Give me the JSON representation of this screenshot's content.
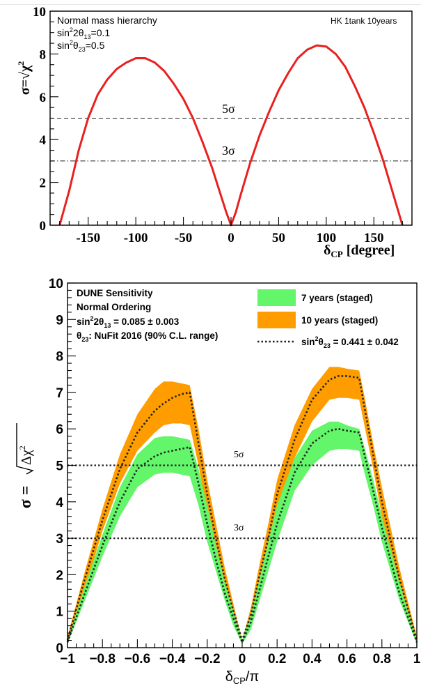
{
  "chart_data": [
    {
      "type": "line",
      "xlabel": "δCP [degree]",
      "ylabel": "σ=√χ²",
      "xlim": [
        -190,
        190
      ],
      "ylim": [
        0,
        10
      ],
      "xticks": [
        -150,
        -100,
        -50,
        0,
        50,
        100,
        150
      ],
      "yticks": [
        0,
        2,
        4,
        6,
        8,
        10
      ],
      "annotations": [
        "Normal mass hierarchy",
        "sin²2θ13=0.1",
        "sin²θ23=0.5"
      ],
      "corner_label": "HK 1tank 10years",
      "grid": false,
      "thresholds": [
        {
          "label": "5σ",
          "value": 5,
          "style": "dashed"
        },
        {
          "label": "3σ",
          "value": 3,
          "style": "dashdot"
        }
      ],
      "series": [
        {
          "color": "#e8201f",
          "x": [
            -180,
            -170,
            -160,
            -150,
            -140,
            -130,
            -120,
            -110,
            -100,
            -90,
            -80,
            -70,
            -60,
            -50,
            -40,
            -30,
            -20,
            -10,
            -5,
            0,
            5,
            10,
            20,
            30,
            40,
            50,
            60,
            70,
            80,
            90,
            100,
            110,
            120,
            130,
            140,
            150,
            160,
            170,
            180
          ],
          "y": [
            0.0,
            1.6,
            3.5,
            5.0,
            6.1,
            6.8,
            7.3,
            7.6,
            7.8,
            7.8,
            7.6,
            7.2,
            6.6,
            5.9,
            5.0,
            3.9,
            2.7,
            1.3,
            0.6,
            0.0,
            0.6,
            1.4,
            2.9,
            4.2,
            5.3,
            6.3,
            7.1,
            7.8,
            8.2,
            8.4,
            8.35,
            8.0,
            7.4,
            6.5,
            5.5,
            4.3,
            3.0,
            1.5,
            0.0
          ]
        }
      ]
    },
    {
      "type": "area",
      "xlabel": "δCP/π",
      "ylabel": "σ = √Δχ²",
      "xlim": [
        -1,
        1
      ],
      "ylim": [
        0,
        10
      ],
      "xticks": [
        -1,
        -0.8,
        -0.6,
        -0.4,
        -0.2,
        0,
        0.2,
        0.4,
        0.6,
        0.8,
        1
      ],
      "xtick_labels": [
        "−1",
        "−0.8",
        "−0.6",
        "−0.4",
        "−0.2",
        "0",
        "0.2",
        "0.4",
        "0.6",
        "0.8",
        "1"
      ],
      "yticks": [
        0,
        1,
        2,
        3,
        4,
        5,
        6,
        7,
        8,
        9,
        10
      ],
      "annotations": [
        "DUNE Sensitivity",
        "Normal Ordering",
        "sin²2θ13 = 0.085 ± 0.003",
        "θ23: NuFit 2016 (90% C.L. range)"
      ],
      "legend": [
        "7 years (staged)",
        "10 years (staged)",
        "sin²θ23 = 0.441 ± 0.042"
      ],
      "legend_placement": "top-right",
      "grid": false,
      "thresholds": [
        {
          "label": "5σ",
          "value": 5,
          "style": "dotted"
        },
        {
          "label": "3σ",
          "value": 3,
          "style": "dotted"
        }
      ],
      "series": [
        {
          "name": "10 years (staged)",
          "kind": "band",
          "color": "#ff9d00",
          "x": [
            -1,
            -0.9,
            -0.8,
            -0.7,
            -0.6,
            -0.5,
            -0.45,
            -0.4,
            -0.35,
            -0.3,
            -0.25,
            -0.2,
            -0.15,
            -0.1,
            -0.05,
            0,
            0.05,
            0.1,
            0.15,
            0.2,
            0.3,
            0.4,
            0.5,
            0.55,
            0.6,
            0.67,
            0.7,
            0.75,
            0.8,
            0.9,
            1
          ],
          "upper": [
            0.3,
            2.1,
            3.8,
            5.3,
            6.4,
            7.1,
            7.3,
            7.3,
            7.25,
            7.2,
            6.0,
            4.6,
            3.4,
            2.2,
            1.2,
            0.2,
            1.1,
            2.3,
            3.4,
            4.6,
            6.1,
            7.1,
            7.7,
            7.7,
            7.65,
            7.6,
            6.9,
            5.6,
            4.4,
            2.2,
            0.3
          ],
          "lower": [
            0.1,
            1.6,
            3.2,
            4.5,
            5.4,
            5.9,
            6.1,
            6.15,
            6.15,
            6.1,
            5.0,
            3.7,
            2.6,
            1.6,
            0.8,
            0.1,
            0.6,
            1.6,
            2.6,
            3.7,
            5.2,
            6.2,
            6.8,
            6.85,
            6.85,
            6.8,
            6.1,
            4.9,
            3.6,
            1.7,
            0.1
          ]
        },
        {
          "name": "7 years (staged)",
          "kind": "band",
          "color": "#63f56a",
          "x": [
            -1,
            -0.9,
            -0.8,
            -0.7,
            -0.6,
            -0.5,
            -0.45,
            -0.4,
            -0.35,
            -0.3,
            -0.25,
            -0.2,
            -0.15,
            -0.1,
            -0.05,
            0,
            0.05,
            0.1,
            0.15,
            0.2,
            0.3,
            0.4,
            0.5,
            0.55,
            0.6,
            0.67,
            0.7,
            0.75,
            0.8,
            0.9,
            1
          ],
          "upper": [
            0.2,
            1.7,
            3.1,
            4.4,
            5.3,
            5.75,
            5.8,
            5.8,
            5.75,
            5.7,
            4.9,
            3.9,
            2.8,
            1.8,
            1.0,
            0.2,
            0.9,
            1.9,
            2.9,
            3.9,
            5.2,
            5.95,
            6.2,
            6.2,
            6.1,
            6.0,
            5.5,
            4.6,
            3.6,
            1.8,
            0.2
          ],
          "lower": [
            0.1,
            1.3,
            2.5,
            3.6,
            4.4,
            4.75,
            4.8,
            4.8,
            4.75,
            4.7,
            3.9,
            2.9,
            2.1,
            1.3,
            0.6,
            0.1,
            0.5,
            1.3,
            2.1,
            2.9,
            4.3,
            5.0,
            5.4,
            5.45,
            5.45,
            5.4,
            4.8,
            3.9,
            2.9,
            1.3,
            0.1
          ]
        },
        {
          "name": "sin²θ23 = 0.441 ± 0.042",
          "kind": "line",
          "style": "dotted",
          "color": "#222222",
          "x": [
            -1,
            -0.9,
            -0.8,
            -0.7,
            -0.6,
            -0.5,
            -0.45,
            -0.4,
            -0.35,
            -0.3,
            -0.25,
            -0.2,
            -0.15,
            -0.1,
            -0.05,
            0,
            0.05,
            0.1,
            0.15,
            0.2,
            0.3,
            0.4,
            0.5,
            0.55,
            0.6,
            0.67,
            0.7,
            0.75,
            0.8,
            0.9,
            1
          ],
          "y": [
            0.2,
            1.9,
            3.5,
            4.9,
            5.9,
            6.5,
            6.7,
            6.85,
            6.95,
            7.0,
            5.6,
            4.2,
            3.0,
            1.9,
            1.0,
            0.2,
            0.9,
            2.0,
            3.0,
            4.2,
            5.7,
            6.8,
            7.35,
            7.45,
            7.45,
            7.4,
            6.6,
            5.3,
            4.0,
            1.9,
            0.2
          ]
        },
        {
          "name": "",
          "kind": "line",
          "style": "dotted",
          "color": "#222222",
          "x": [
            -1,
            -0.9,
            -0.8,
            -0.7,
            -0.6,
            -0.5,
            -0.45,
            -0.4,
            -0.35,
            -0.3,
            -0.25,
            -0.2,
            -0.15,
            -0.1,
            -0.05,
            0,
            0.05,
            0.1,
            0.15,
            0.2,
            0.3,
            0.4,
            0.5,
            0.55,
            0.6,
            0.67,
            0.7,
            0.75,
            0.8,
            0.9,
            1
          ],
          "y": [
            0.15,
            1.5,
            2.8,
            4.0,
            4.9,
            5.25,
            5.35,
            5.4,
            5.45,
            5.5,
            4.5,
            3.4,
            2.4,
            1.5,
            0.8,
            0.15,
            0.7,
            1.6,
            2.5,
            3.4,
            4.8,
            5.6,
            5.95,
            6.0,
            5.95,
            5.9,
            5.3,
            4.3,
            3.3,
            1.5,
            0.15
          ]
        }
      ]
    }
  ],
  "top": {
    "annot1": "Normal mass hierarchy",
    "corner": "HK 1tank 10years",
    "sig5": "5σ",
    "sig3": "3σ",
    "tick_labels": [
      "-150",
      "-100",
      "-50",
      "0",
      "50",
      "100",
      "150"
    ],
    "ytick_labels": [
      "0",
      "2",
      "4",
      "6",
      "8",
      "10"
    ]
  },
  "bottom": {
    "annot1": "DUNE Sensitivity",
    "annot2": "Normal Ordering",
    "legend1": "7 years (staged)",
    "legend2": "10 years (staged)",
    "sig5": "5σ",
    "sig3": "3σ",
    "ytick_labels": [
      "0",
      "1",
      "2",
      "3",
      "4",
      "5",
      "6",
      "7",
      "8",
      "9",
      "10"
    ]
  }
}
